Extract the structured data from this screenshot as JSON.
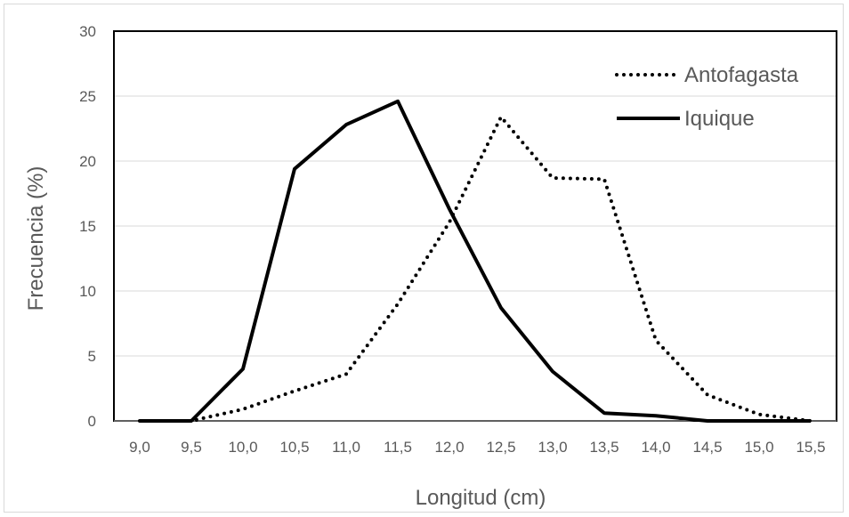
{
  "chart_data": {
    "type": "line",
    "title": "",
    "xlabel": "Longitud (cm)",
    "ylabel": "Frecuencia (%)",
    "x": [
      "9,0",
      "9,5",
      "10,0",
      "10,5",
      "11,0",
      "11,5",
      "12,0",
      "12,5",
      "13,0",
      "13,5",
      "14,0",
      "14,5",
      "15,0",
      "15,5"
    ],
    "ylim": [
      0,
      30
    ],
    "yticks": [
      "0",
      "5",
      "10",
      "15",
      "20",
      "25",
      "30"
    ],
    "grid": true,
    "legend_position": "top-right",
    "series": [
      {
        "name": "Antofagasta",
        "style": "dotted",
        "color": "#000000",
        "values": [
          0,
          0,
          0.9,
          2.3,
          3.6,
          9.0,
          15.3,
          23.4,
          18.7,
          18.6,
          6.2,
          2.0,
          0.5,
          0
        ]
      },
      {
        "name": "Iquique",
        "style": "solid",
        "color": "#000000",
        "values": [
          0,
          0,
          4.0,
          19.4,
          22.8,
          24.6,
          16.3,
          8.7,
          3.8,
          0.6,
          0.4,
          0,
          0,
          0
        ]
      }
    ]
  }
}
